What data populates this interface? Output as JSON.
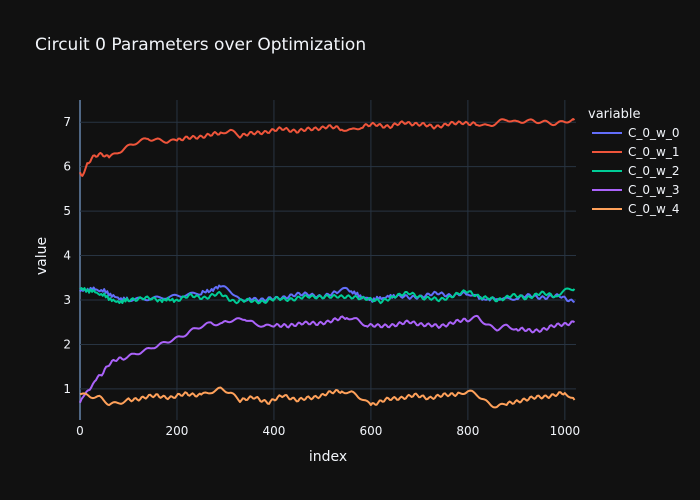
{
  "chart_data": {
    "type": "line",
    "title": "Circuit 0 Parameters over Optimization",
    "xlabel": "index",
    "ylabel": "value",
    "xlim": [
      0,
      1023
    ],
    "ylim": [
      0.3,
      7.5
    ],
    "x_ticks": [
      0,
      200,
      400,
      600,
      800,
      1000
    ],
    "y_ticks": [
      1,
      2,
      3,
      4,
      5,
      6,
      7
    ],
    "legend_title": "variable",
    "legend_position": "right",
    "grid": true,
    "series": [
      {
        "name": "C_0_w_0",
        "color": "#636efa",
        "x": [
          0,
          25,
          50,
          75,
          100,
          150,
          200,
          250,
          290,
          310,
          330,
          350,
          380,
          410,
          440,
          470,
          500,
          530,
          550,
          575,
          600,
          625,
          650,
          680,
          710,
          740,
          770,
          800,
          820,
          845,
          860,
          880,
          900,
          930,
          960,
          990,
          1020
        ],
        "y": [
          3.2,
          3.25,
          3.2,
          3.05,
          3.0,
          3.05,
          3.1,
          3.15,
          3.3,
          3.2,
          3.0,
          3.05,
          3.0,
          3.05,
          3.1,
          3.15,
          3.05,
          3.2,
          3.25,
          3.1,
          3.0,
          3.05,
          3.1,
          3.05,
          3.1,
          3.15,
          3.1,
          3.15,
          3.05,
          3.0,
          3.05,
          3.0,
          3.05,
          3.1,
          3.05,
          3.1,
          2.95
        ]
      },
      {
        "name": "C_0_w_1",
        "color": "#ef553b",
        "x": [
          0,
          5,
          15,
          30,
          45,
          60,
          80,
          100,
          120,
          140,
          160,
          180,
          200,
          230,
          260,
          290,
          310,
          330,
          360,
          390,
          420,
          450,
          480,
          510,
          540,
          560,
          580,
          610,
          640,
          670,
          700,
          730,
          760,
          790,
          820,
          840,
          860,
          880,
          900,
          920,
          940,
          960,
          980,
          1000,
          1020
        ],
        "y": [
          5.85,
          5.82,
          6.05,
          6.25,
          6.3,
          6.2,
          6.35,
          6.45,
          6.55,
          6.65,
          6.6,
          6.55,
          6.6,
          6.65,
          6.7,
          6.75,
          6.8,
          6.7,
          6.75,
          6.8,
          6.85,
          6.8,
          6.85,
          6.9,
          6.85,
          6.8,
          6.9,
          6.95,
          6.9,
          7.0,
          6.95,
          6.9,
          6.95,
          7.0,
          6.95,
          6.92,
          7.0,
          7.05,
          7.0,
          7.05,
          7.0,
          7.0,
          6.98,
          7.0,
          7.05
        ]
      },
      {
        "name": "C_0_w_2",
        "color": "#00cc96",
        "x": [
          0,
          25,
          50,
          75,
          100,
          130,
          160,
          200,
          230,
          260,
          290,
          320,
          350,
          380,
          410,
          440,
          470,
          500,
          530,
          560,
          590,
          620,
          650,
          680,
          710,
          740,
          770,
          800,
          830,
          860,
          890,
          920,
          950,
          980,
          1000,
          1020
        ],
        "y": [
          3.25,
          3.2,
          3.1,
          2.95,
          3.0,
          3.05,
          3.0,
          3.0,
          3.1,
          3.05,
          3.15,
          2.95,
          3.0,
          2.95,
          3.05,
          3.0,
          3.1,
          3.05,
          3.1,
          3.05,
          3.05,
          2.95,
          3.1,
          3.15,
          3.05,
          3.0,
          3.1,
          3.2,
          3.05,
          3.0,
          3.1,
          3.05,
          3.15,
          3.1,
          3.2,
          3.25
        ]
      },
      {
        "name": "C_0_w_3",
        "color": "#ab63fa",
        "x": [
          0,
          10,
          20,
          30,
          45,
          60,
          75,
          90,
          110,
          130,
          150,
          170,
          190,
          210,
          230,
          250,
          270,
          290,
          300,
          320,
          340,
          360,
          380,
          400,
          430,
          460,
          490,
          520,
          550,
          570,
          590,
          620,
          650,
          680,
          710,
          740,
          770,
          800,
          820,
          840,
          860,
          880,
          900,
          930,
          960,
          990,
          1020
        ],
        "y": [
          0.7,
          0.85,
          1.0,
          1.2,
          1.35,
          1.55,
          1.65,
          1.7,
          1.75,
          1.85,
          1.95,
          2.0,
          2.1,
          2.2,
          2.3,
          2.4,
          2.5,
          2.45,
          2.5,
          2.55,
          2.6,
          2.45,
          2.4,
          2.45,
          2.4,
          2.5,
          2.45,
          2.55,
          2.6,
          2.55,
          2.45,
          2.4,
          2.45,
          2.5,
          2.45,
          2.4,
          2.5,
          2.55,
          2.6,
          2.45,
          2.35,
          2.4,
          2.35,
          2.3,
          2.35,
          2.45,
          2.5
        ]
      },
      {
        "name": "C_0_w_4",
        "color": "#ffa15a",
        "x": [
          0,
          20,
          40,
          60,
          80,
          100,
          130,
          160,
          190,
          220,
          250,
          270,
          290,
          310,
          330,
          360,
          390,
          420,
          450,
          480,
          510,
          540,
          560,
          580,
          600,
          630,
          660,
          690,
          720,
          750,
          780,
          800,
          820,
          840,
          860,
          880,
          910,
          940,
          970,
          1000,
          1020
        ],
        "y": [
          0.9,
          0.85,
          0.8,
          0.65,
          0.7,
          0.75,
          0.8,
          0.85,
          0.8,
          0.9,
          0.85,
          0.95,
          1.0,
          0.9,
          0.75,
          0.8,
          0.7,
          0.85,
          0.75,
          0.8,
          0.9,
          0.95,
          0.9,
          0.8,
          0.65,
          0.75,
          0.8,
          0.85,
          0.8,
          0.85,
          0.9,
          0.95,
          0.85,
          0.7,
          0.6,
          0.65,
          0.75,
          0.8,
          0.85,
          0.9,
          0.75
        ]
      }
    ]
  }
}
